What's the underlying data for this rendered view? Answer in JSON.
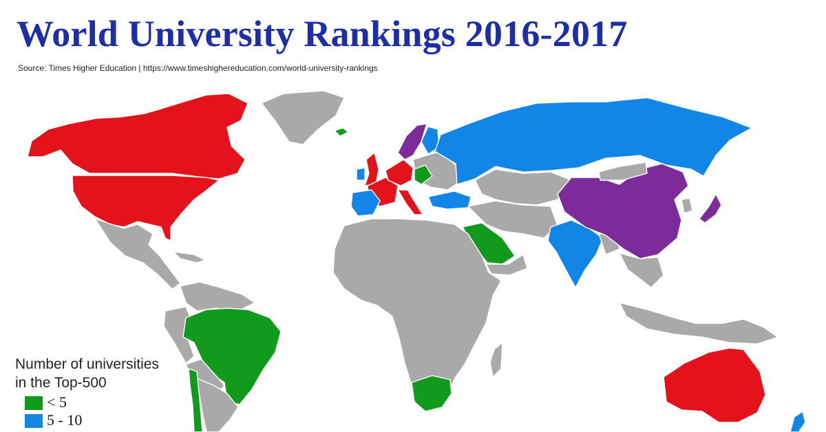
{
  "header": {
    "title": "World University Rankings 2016-2017",
    "source": "Source: Times Higher Education |  https://www.timeshighereducation.com/world-university-rankings"
  },
  "colors": {
    "lt5": "#129a1c",
    "5to10": "#1186e6",
    "purple": "#7d2a9b",
    "red": "#e4121a",
    "none": "#a9a9a9"
  },
  "legend": {
    "title_line1": "Number of universities",
    "title_line2": "in the Top-500",
    "items": [
      {
        "label": "< 5",
        "color": "#129a1c"
      },
      {
        "label": "5 - 10",
        "color": "#1186e6"
      }
    ]
  }
}
